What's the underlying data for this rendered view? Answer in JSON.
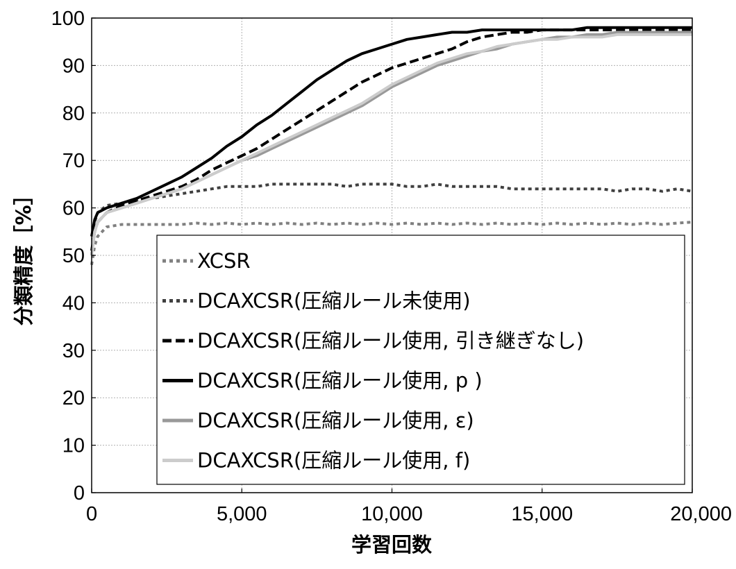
{
  "chart_data": {
    "type": "line",
    "title": "",
    "xlabel": "学習回数",
    "ylabel": "分類精度［%］",
    "xlim": [
      0,
      20000
    ],
    "ylim": [
      0,
      100
    ],
    "x_ticks": [
      "0",
      "5,000",
      "10,000",
      "15,000",
      "20,000"
    ],
    "y_ticks": [
      "0",
      "10",
      "20",
      "30",
      "40",
      "50",
      "60",
      "70",
      "80",
      "90",
      "100"
    ],
    "grid": true,
    "legend_position": "lower-right",
    "x": [
      0,
      100,
      200,
      500,
      1000,
      1500,
      2000,
      2500,
      3000,
      3500,
      4000,
      4500,
      5000,
      5500,
      6000,
      6500,
      7000,
      7500,
      8000,
      8500,
      9000,
      9500,
      10000,
      10500,
      11000,
      11500,
      12000,
      12500,
      13000,
      13500,
      14000,
      14500,
      15000,
      15500,
      16000,
      16500,
      17000,
      17500,
      18000,
      18500,
      19000,
      19500,
      20000
    ],
    "series": [
      {
        "name": "XCSR",
        "color": "#808080",
        "dash": "dot",
        "values": [
          48,
          52,
          54,
          56,
          56.5,
          56.5,
          56.5,
          56.5,
          56.5,
          56.8,
          56.5,
          56.8,
          56.5,
          56.8,
          56.5,
          56.8,
          56.5,
          56.8,
          56.5,
          56.8,
          56.5,
          56.8,
          56.5,
          56.8,
          56.5,
          56.8,
          56.5,
          56.8,
          56.5,
          56.8,
          56.5,
          56.8,
          56.5,
          56.8,
          56.5,
          56.8,
          56.5,
          56.8,
          56.5,
          56.8,
          56.5,
          56.8,
          57
        ]
      },
      {
        "name": "DCAXCSR(圧縮ルール未使用)",
        "color": "#404040",
        "dash": "dot",
        "values": [
          50,
          57,
          59,
          60.5,
          61,
          61.5,
          62,
          62.5,
          63,
          63.5,
          64,
          64.5,
          64.5,
          64.5,
          65,
          65,
          65,
          65,
          65,
          64.5,
          65,
          65,
          65,
          64.5,
          64.5,
          65,
          64.5,
          64.5,
          64.5,
          64.5,
          64,
          64,
          64,
          64,
          64,
          64,
          64,
          63.5,
          64,
          64,
          63.5,
          64,
          63.5
        ]
      },
      {
        "name": "DCAXCSR(圧縮ルール使用, 引き継ぎなし)",
        "color": "#000000",
        "dash": "dash",
        "values": [
          51,
          55,
          57,
          59,
          60.5,
          61.5,
          62.5,
          63.5,
          64.5,
          66,
          68,
          69.5,
          71,
          72.5,
          74.5,
          76.5,
          78.5,
          80.5,
          82.5,
          84.5,
          86.5,
          88,
          89.5,
          90.5,
          91.5,
          92.5,
          93.5,
          95,
          96,
          96.5,
          97,
          97,
          97.5,
          97.5,
          97.5,
          97.5,
          97.5,
          97.5,
          97.5,
          97.5,
          97.5,
          97.5,
          97.5
        ]
      },
      {
        "name": "DCAXCSR(圧縮ルール使用,  p )",
        "color": "#000000",
        "dash": "solid",
        "values": [
          54,
          57.5,
          59,
          60,
          61,
          62,
          63.5,
          65,
          66.5,
          68.5,
          70.5,
          73,
          75,
          77.5,
          79.5,
          82,
          84.5,
          87,
          89,
          91,
          92.5,
          93.5,
          94.5,
          95.5,
          96,
          96.5,
          97,
          97,
          97.5,
          97.5,
          97.5,
          97.5,
          97.5,
          97.5,
          97.5,
          98,
          98,
          98,
          98,
          98,
          98,
          98,
          98
        ]
      },
      {
        "name": "DCAXCSR(圧縮ルール使用, ε)",
        "color": "#999999",
        "dash": "solid",
        "values": [
          50,
          55,
          57,
          59,
          60,
          61,
          62,
          63,
          64,
          65.5,
          67,
          68.5,
          70,
          71,
          72.5,
          74,
          75.5,
          77,
          78.5,
          80,
          81.5,
          83.5,
          85.5,
          87,
          88.5,
          90,
          91,
          92,
          93,
          93.5,
          94.5,
          95,
          95.5,
          96,
          96,
          96.5,
          96.5,
          97,
          97,
          97,
          97,
          97,
          97
        ]
      },
      {
        "name": "DCAXCSR(圧縮ルール使用, f)",
        "color": "#cccccc",
        "dash": "solid",
        "values": [
          50,
          55,
          57,
          59,
          60,
          61,
          62,
          63,
          64,
          65.5,
          67,
          68.5,
          70,
          71.5,
          73,
          74.5,
          76,
          77.5,
          79,
          80.5,
          82,
          84,
          86,
          87.5,
          89,
          90.5,
          91.5,
          92.5,
          93,
          94,
          94.5,
          95,
          95.5,
          95.5,
          96,
          96,
          96,
          96.5,
          96.5,
          96.5,
          96.5,
          96.5,
          96.5
        ]
      }
    ]
  }
}
